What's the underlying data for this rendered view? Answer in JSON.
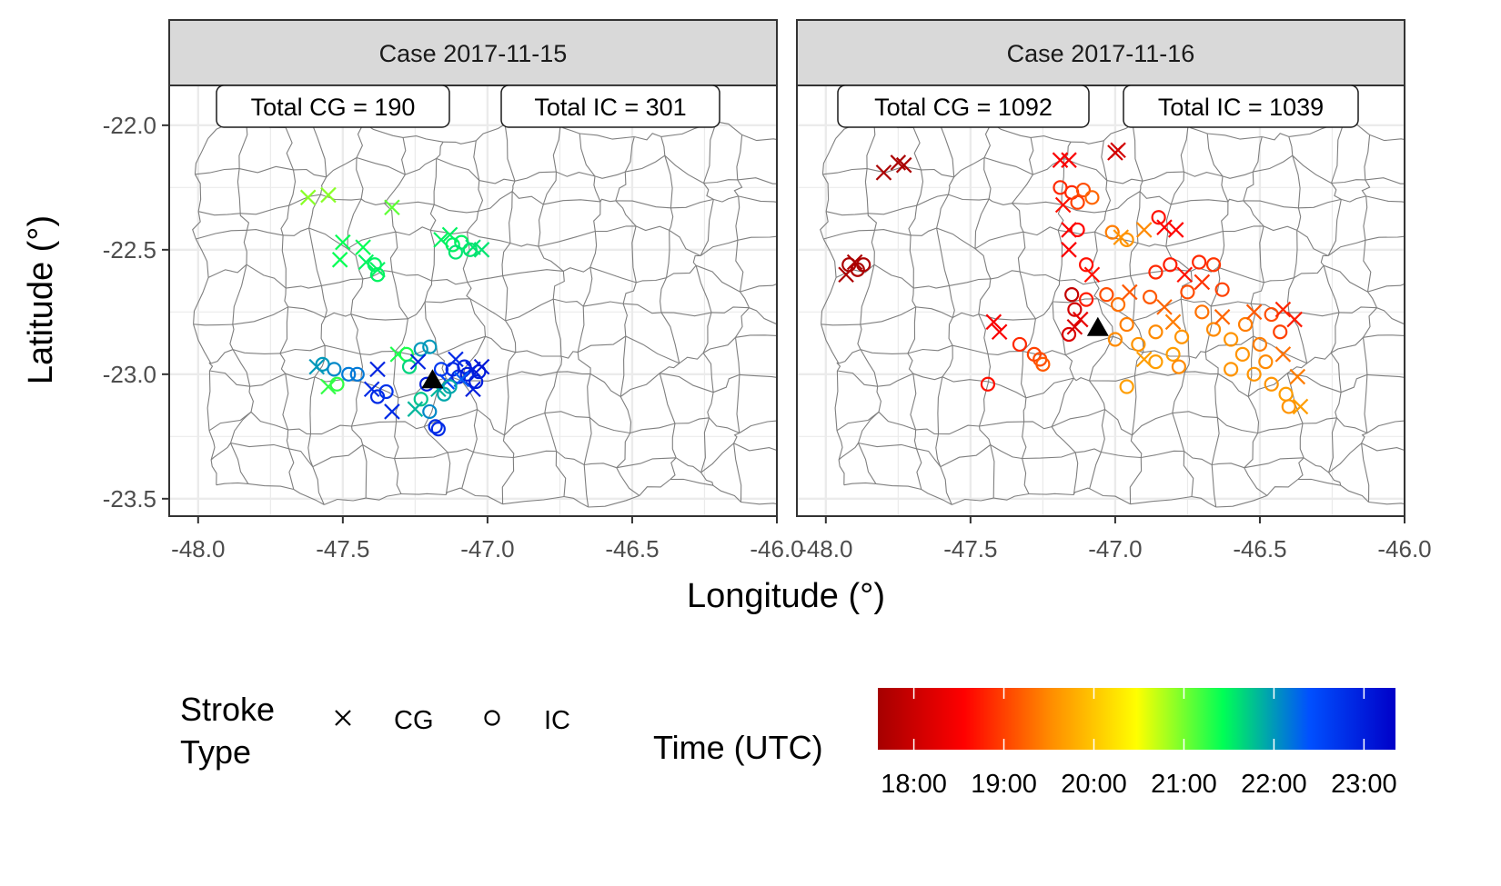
{
  "chart_data": [
    {
      "type": "scatter",
      "title": "Case 2017-11-15",
      "xlabel": "Longitude (°)",
      "ylabel": "Latitude (°)",
      "xlim": [
        -48.1,
        -46.0
      ],
      "ylim": [
        -23.57,
        -21.84
      ],
      "x_ticks": [
        -48.0,
        -47.5,
        -47.0,
        -46.5,
        -46.0
      ],
      "x_tick_labels": [
        "-48.0",
        "-47.5",
        "-47.0",
        "-46.5",
        "-46.0"
      ],
      "y_ticks": [
        -22.0,
        -22.5,
        -23.0,
        -23.5
      ],
      "y_tick_labels": [
        "-22.0",
        "-22.5",
        "-23.0",
        "-23.5"
      ],
      "grid": true,
      "annotations": [
        "Total CG = 190",
        "Total IC = 301"
      ],
      "radar_marker": {
        "x": -47.19,
        "y": -23.02,
        "color": "#000000"
      },
      "strokes": [
        {
          "type": "CG",
          "x": -47.62,
          "y": -22.29,
          "time": "20:55"
        },
        {
          "type": "CG",
          "x": -47.55,
          "y": -22.28,
          "time": "20:55"
        },
        {
          "type": "CG",
          "x": -47.33,
          "y": -22.33,
          "time": "21:05"
        },
        {
          "type": "CG",
          "x": -47.5,
          "y": -22.47,
          "time": "21:25"
        },
        {
          "type": "CG",
          "x": -47.51,
          "y": -22.54,
          "time": "21:25"
        },
        {
          "type": "CG",
          "x": -47.43,
          "y": -22.49,
          "time": "21:25"
        },
        {
          "type": "CG",
          "x": -47.42,
          "y": -22.55,
          "time": "21:30"
        },
        {
          "type": "CG",
          "x": -47.38,
          "y": -22.58,
          "time": "21:30"
        },
        {
          "type": "IC",
          "x": -47.39,
          "y": -22.56,
          "time": "21:30"
        },
        {
          "type": "IC",
          "x": -47.38,
          "y": -22.6,
          "time": "21:30"
        },
        {
          "type": "CG",
          "x": -47.16,
          "y": -22.46,
          "time": "21:30"
        },
        {
          "type": "IC",
          "x": -47.12,
          "y": -22.48,
          "time": "21:30"
        },
        {
          "type": "IC",
          "x": -47.09,
          "y": -22.47,
          "time": "21:30"
        },
        {
          "type": "IC",
          "x": -47.11,
          "y": -22.51,
          "time": "21:35"
        },
        {
          "type": "CG",
          "x": -47.05,
          "y": -22.49,
          "time": "21:35"
        },
        {
          "type": "IC",
          "x": -47.06,
          "y": -22.5,
          "time": "21:35"
        },
        {
          "type": "CG",
          "x": -47.02,
          "y": -22.5,
          "time": "21:35"
        },
        {
          "type": "CG",
          "x": -47.13,
          "y": -22.44,
          "time": "21:30"
        },
        {
          "type": "IC",
          "x": -47.57,
          "y": -22.96,
          "time": "22:00"
        },
        {
          "type": "CG",
          "x": -47.59,
          "y": -22.97,
          "time": "22:00"
        },
        {
          "type": "IC",
          "x": -47.53,
          "y": -22.98,
          "time": "22:05"
        },
        {
          "type": "CG",
          "x": -47.55,
          "y": -23.05,
          "time": "21:15"
        },
        {
          "type": "IC",
          "x": -47.52,
          "y": -23.04,
          "time": "21:15"
        },
        {
          "type": "IC",
          "x": -47.48,
          "y": -23.0,
          "time": "22:10"
        },
        {
          "type": "IC",
          "x": -47.45,
          "y": -23.0,
          "time": "22:10"
        },
        {
          "type": "CG",
          "x": -47.4,
          "y": -23.06,
          "time": "22:50"
        },
        {
          "type": "IC",
          "x": -47.38,
          "y": -23.09,
          "time": "22:50"
        },
        {
          "type": "CG",
          "x": -47.38,
          "y": -22.98,
          "time": "22:55"
        },
        {
          "type": "IC",
          "x": -47.35,
          "y": -23.07,
          "time": "22:45"
        },
        {
          "type": "CG",
          "x": -47.33,
          "y": -23.15,
          "time": "22:50"
        },
        {
          "type": "CG",
          "x": -47.31,
          "y": -22.92,
          "time": "21:20"
        },
        {
          "type": "IC",
          "x": -47.28,
          "y": -22.92,
          "time": "21:20"
        },
        {
          "type": "IC",
          "x": -47.27,
          "y": -22.97,
          "time": "21:40"
        },
        {
          "type": "IC",
          "x": -47.23,
          "y": -22.9,
          "time": "22:00"
        },
        {
          "type": "IC",
          "x": -47.2,
          "y": -22.89,
          "time": "22:00"
        },
        {
          "type": "CG",
          "x": -47.24,
          "y": -22.95,
          "time": "22:55"
        },
        {
          "type": "IC",
          "x": -47.23,
          "y": -23.1,
          "time": "21:45"
        },
        {
          "type": "CG",
          "x": -47.25,
          "y": -23.14,
          "time": "21:50"
        },
        {
          "type": "IC",
          "x": -47.2,
          "y": -23.15,
          "time": "22:05"
        },
        {
          "type": "IC",
          "x": -47.18,
          "y": -23.21,
          "time": "22:50"
        },
        {
          "type": "IC",
          "x": -47.17,
          "y": -23.22,
          "time": "22:50"
        },
        {
          "type": "CG",
          "x": -47.17,
          "y": -23.06,
          "time": "21:50"
        },
        {
          "type": "IC",
          "x": -47.15,
          "y": -23.08,
          "time": "21:55"
        },
        {
          "type": "CG",
          "x": -47.14,
          "y": -23.03,
          "time": "22:30"
        },
        {
          "type": "IC",
          "x": -47.16,
          "y": -22.98,
          "time": "22:40"
        },
        {
          "type": "IC",
          "x": -47.12,
          "y": -22.98,
          "time": "22:50"
        },
        {
          "type": "IC",
          "x": -47.1,
          "y": -23.01,
          "time": "22:55"
        },
        {
          "type": "IC",
          "x": -47.08,
          "y": -22.97,
          "time": "22:55"
        },
        {
          "type": "IC",
          "x": -47.07,
          "y": -23.0,
          "time": "23:00"
        },
        {
          "type": "CG",
          "x": -47.05,
          "y": -22.98,
          "time": "23:00"
        },
        {
          "type": "IC",
          "x": -47.03,
          "y": -22.99,
          "time": "23:00"
        },
        {
          "type": "CG",
          "x": -47.02,
          "y": -22.97,
          "time": "23:05"
        },
        {
          "type": "IC",
          "x": -47.04,
          "y": -23.03,
          "time": "23:00"
        },
        {
          "type": "CG",
          "x": -47.05,
          "y": -23.06,
          "time": "23:00"
        },
        {
          "type": "CG",
          "x": -47.09,
          "y": -23.02,
          "time": "22:20"
        },
        {
          "type": "IC",
          "x": -47.13,
          "y": -23.05,
          "time": "21:55"
        },
        {
          "type": "CG",
          "x": -47.11,
          "y": -22.94,
          "time": "22:50"
        },
        {
          "type": "IC",
          "x": -47.21,
          "y": -23.04,
          "time": "23:00"
        }
      ]
    },
    {
      "type": "scatter",
      "title": "Case 2017-11-16",
      "xlabel": "Longitude (°)",
      "ylabel": "Latitude (°)",
      "xlim": [
        -48.1,
        -46.0
      ],
      "ylim": [
        -23.57,
        -21.84
      ],
      "x_ticks": [
        -48.0,
        -47.5,
        -47.0,
        -46.5,
        -46.0
      ],
      "x_tick_labels": [
        "-48.0",
        "-47.5",
        "-47.0",
        "-46.5",
        "-46.0"
      ],
      "grid": true,
      "annotations": [
        "Total CG = 1092",
        "Total IC = 1039"
      ],
      "radar_marker": {
        "x": -47.06,
        "y": -22.81,
        "color": "#000000"
      },
      "strokes": [
        {
          "type": "CG",
          "x": -47.8,
          "y": -22.19,
          "time": "17:40"
        },
        {
          "type": "CG",
          "x": -47.75,
          "y": -22.15,
          "time": "17:40"
        },
        {
          "type": "CG",
          "x": -47.73,
          "y": -22.16,
          "time": "17:40"
        },
        {
          "type": "IC",
          "x": -47.92,
          "y": -22.56,
          "time": "17:40"
        },
        {
          "type": "IC",
          "x": -47.89,
          "y": -22.58,
          "time": "17:40"
        },
        {
          "type": "CG",
          "x": -47.9,
          "y": -22.55,
          "time": "17:40"
        },
        {
          "type": "IC",
          "x": -47.87,
          "y": -22.56,
          "time": "17:40"
        },
        {
          "type": "CG",
          "x": -47.93,
          "y": -22.6,
          "time": "17:40"
        },
        {
          "type": "CG",
          "x": -47.19,
          "y": -22.14,
          "time": "18:30"
        },
        {
          "type": "CG",
          "x": -47.16,
          "y": -22.14,
          "time": "18:30"
        },
        {
          "type": "CG",
          "x": -47.0,
          "y": -22.11,
          "time": "18:05"
        },
        {
          "type": "CG",
          "x": -46.99,
          "y": -22.1,
          "time": "18:05"
        },
        {
          "type": "IC",
          "x": -47.19,
          "y": -22.25,
          "time": "18:50"
        },
        {
          "type": "IC",
          "x": -47.15,
          "y": -22.27,
          "time": "18:50"
        },
        {
          "type": "IC",
          "x": -47.11,
          "y": -22.26,
          "time": "19:05"
        },
        {
          "type": "IC",
          "x": -47.08,
          "y": -22.29,
          "time": "19:15"
        },
        {
          "type": "IC",
          "x": -47.13,
          "y": -22.31,
          "time": "19:00"
        },
        {
          "type": "CG",
          "x": -47.18,
          "y": -22.32,
          "time": "18:40"
        },
        {
          "type": "CG",
          "x": -47.16,
          "y": -22.42,
          "time": "18:30"
        },
        {
          "type": "IC",
          "x": -47.13,
          "y": -22.42,
          "time": "18:35"
        },
        {
          "type": "CG",
          "x": -47.16,
          "y": -22.5,
          "time": "18:30"
        },
        {
          "type": "IC",
          "x": -47.01,
          "y": -22.43,
          "time": "19:25"
        },
        {
          "type": "IC",
          "x": -46.96,
          "y": -22.46,
          "time": "19:35"
        },
        {
          "type": "CG",
          "x": -46.98,
          "y": -22.45,
          "time": "19:35"
        },
        {
          "type": "CG",
          "x": -46.9,
          "y": -22.42,
          "time": "19:30"
        },
        {
          "type": "IC",
          "x": -46.85,
          "y": -22.37,
          "time": "18:40"
        },
        {
          "type": "CG",
          "x": -46.83,
          "y": -22.41,
          "time": "18:35"
        },
        {
          "type": "CG",
          "x": -46.79,
          "y": -22.42,
          "time": "18:35"
        },
        {
          "type": "IC",
          "x": -47.1,
          "y": -22.56,
          "time": "18:40"
        },
        {
          "type": "CG",
          "x": -47.08,
          "y": -22.6,
          "time": "18:40"
        },
        {
          "type": "IC",
          "x": -47.15,
          "y": -22.68,
          "time": "17:55"
        },
        {
          "type": "IC",
          "x": -47.14,
          "y": -22.74,
          "time": "18:05"
        },
        {
          "type": "CG",
          "x": -47.12,
          "y": -22.78,
          "time": "18:20"
        },
        {
          "type": "IC",
          "x": -47.1,
          "y": -22.7,
          "time": "18:45"
        },
        {
          "type": "IC",
          "x": -47.03,
          "y": -22.68,
          "time": "19:05"
        },
        {
          "type": "IC",
          "x": -46.99,
          "y": -22.72,
          "time": "19:20"
        },
        {
          "type": "CG",
          "x": -46.95,
          "y": -22.67,
          "time": "19:10"
        },
        {
          "type": "IC",
          "x": -46.86,
          "y": -22.59,
          "time": "18:50"
        },
        {
          "type": "IC",
          "x": -46.81,
          "y": -22.56,
          "time": "18:45"
        },
        {
          "type": "CG",
          "x": -46.76,
          "y": -22.6,
          "time": "18:40"
        },
        {
          "type": "IC",
          "x": -46.71,
          "y": -22.55,
          "time": "18:50"
        },
        {
          "type": "IC",
          "x": -46.66,
          "y": -22.56,
          "time": "18:55"
        },
        {
          "type": "CG",
          "x": -46.7,
          "y": -22.63,
          "time": "18:55"
        },
        {
          "type": "IC",
          "x": -46.63,
          "y": -22.66,
          "time": "19:00"
        },
        {
          "type": "IC",
          "x": -46.75,
          "y": -22.67,
          "time": "19:05"
        },
        {
          "type": "IC",
          "x": -46.88,
          "y": -22.69,
          "time": "19:10"
        },
        {
          "type": "CG",
          "x": -46.83,
          "y": -22.73,
          "time": "19:15"
        },
        {
          "type": "IC",
          "x": -46.96,
          "y": -22.8,
          "time": "19:25"
        },
        {
          "type": "IC",
          "x": -47.0,
          "y": -22.86,
          "time": "19:30"
        },
        {
          "type": "IC",
          "x": -46.92,
          "y": -22.88,
          "time": "19:35"
        },
        {
          "type": "IC",
          "x": -46.86,
          "y": -22.83,
          "time": "19:30"
        },
        {
          "type": "CG",
          "x": -46.8,
          "y": -22.79,
          "time": "19:25"
        },
        {
          "type": "IC",
          "x": -46.77,
          "y": -22.85,
          "time": "19:35"
        },
        {
          "type": "IC",
          "x": -46.8,
          "y": -22.92,
          "time": "19:40"
        },
        {
          "type": "IC",
          "x": -46.86,
          "y": -22.95,
          "time": "19:40"
        },
        {
          "type": "CG",
          "x": -46.9,
          "y": -22.94,
          "time": "19:40"
        },
        {
          "type": "IC",
          "x": -46.78,
          "y": -22.97,
          "time": "19:30"
        },
        {
          "type": "IC",
          "x": -46.96,
          "y": -23.05,
          "time": "19:40"
        },
        {
          "type": "IC",
          "x": -46.7,
          "y": -22.75,
          "time": "19:20"
        },
        {
          "type": "IC",
          "x": -46.66,
          "y": -22.82,
          "time": "19:30"
        },
        {
          "type": "CG",
          "x": -46.63,
          "y": -22.77,
          "time": "19:15"
        },
        {
          "type": "IC",
          "x": -46.6,
          "y": -22.86,
          "time": "19:35"
        },
        {
          "type": "IC",
          "x": -46.55,
          "y": -22.8,
          "time": "19:25"
        },
        {
          "type": "CG",
          "x": -46.52,
          "y": -22.75,
          "time": "19:10"
        },
        {
          "type": "IC",
          "x": -46.46,
          "y": -22.76,
          "time": "19:05"
        },
        {
          "type": "CG",
          "x": -46.42,
          "y": -22.74,
          "time": "18:50"
        },
        {
          "type": "CG",
          "x": -46.38,
          "y": -22.78,
          "time": "18:45"
        },
        {
          "type": "IC",
          "x": -46.43,
          "y": -22.83,
          "time": "19:00"
        },
        {
          "type": "IC",
          "x": -46.5,
          "y": -22.88,
          "time": "19:25"
        },
        {
          "type": "IC",
          "x": -46.56,
          "y": -22.92,
          "time": "19:35"
        },
        {
          "type": "IC",
          "x": -46.48,
          "y": -22.95,
          "time": "19:30"
        },
        {
          "type": "CG",
          "x": -46.42,
          "y": -22.92,
          "time": "19:20"
        },
        {
          "type": "IC",
          "x": -46.52,
          "y": -23.0,
          "time": "19:35"
        },
        {
          "type": "IC",
          "x": -46.46,
          "y": -23.04,
          "time": "19:35"
        },
        {
          "type": "IC",
          "x": -46.41,
          "y": -23.08,
          "time": "19:40"
        },
        {
          "type": "CG",
          "x": -46.36,
          "y": -23.13,
          "time": "19:40"
        },
        {
          "type": "IC",
          "x": -46.4,
          "y": -23.13,
          "time": "19:35"
        },
        {
          "type": "CG",
          "x": -46.37,
          "y": -23.01,
          "time": "19:25"
        },
        {
          "type": "IC",
          "x": -46.6,
          "y": -22.98,
          "time": "19:35"
        },
        {
          "type": "CG",
          "x": -47.42,
          "y": -22.79,
          "time": "18:30"
        },
        {
          "type": "CG",
          "x": -47.4,
          "y": -22.83,
          "time": "18:30"
        },
        {
          "type": "IC",
          "x": -47.33,
          "y": -22.88,
          "time": "18:50"
        },
        {
          "type": "IC",
          "x": -47.28,
          "y": -22.92,
          "time": "19:00"
        },
        {
          "type": "IC",
          "x": -47.26,
          "y": -22.94,
          "time": "19:05"
        },
        {
          "type": "IC",
          "x": -47.25,
          "y": -22.96,
          "time": "19:10"
        },
        {
          "type": "IC",
          "x": -47.44,
          "y": -23.04,
          "time": "18:40"
        },
        {
          "type": "IC",
          "x": -47.16,
          "y": -22.84,
          "time": "18:10"
        },
        {
          "type": "CG",
          "x": -47.14,
          "y": -22.81,
          "time": "18:10"
        }
      ]
    }
  ],
  "panels": [
    {
      "strip_label": "Case 2017-11-15",
      "total_cg": "Total CG = 190",
      "total_ic": "Total IC = 301"
    },
    {
      "strip_label": "Case 2017-11-16",
      "total_cg": "Total CG = 1092",
      "total_ic": "Total IC = 1039"
    }
  ],
  "axes": {
    "xlabel": "Longitude (°)",
    "ylabel": "Latitude (°)",
    "x_tick_labels": [
      "-48.0",
      "-47.5",
      "-47.0",
      "-46.5",
      "-46.0"
    ],
    "y_tick_labels": [
      "-22.0",
      "-22.5",
      "-23.0",
      "-23.5"
    ]
  },
  "legend": {
    "stroke_title_line1": "Stroke",
    "stroke_title_line2": "Type",
    "cg_label": "CG",
    "ic_label": "IC",
    "time_title": "Time (UTC)",
    "time_tick_labels": [
      "18:00",
      "19:00",
      "20:00",
      "21:00",
      "22:00",
      "23:00"
    ],
    "colorbar_colors": [
      "#a50000",
      "#ff0000",
      "#ff8c00",
      "#ffff00",
      "#00ff55",
      "#0050ff",
      "#0000c8"
    ]
  },
  "colors": {
    "panel_border": "#333333",
    "strip_fill": "#d9d9d9",
    "grid": "#ebebeb",
    "boundary": "#7f7f7f",
    "radar_marker": "#000000"
  }
}
